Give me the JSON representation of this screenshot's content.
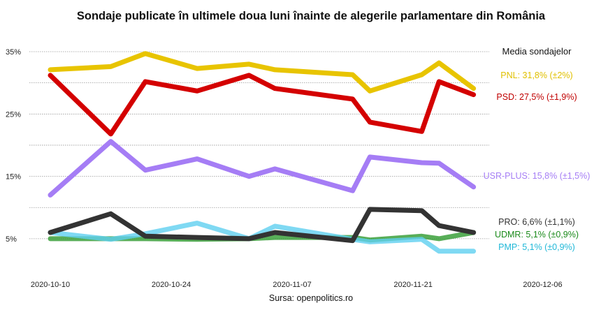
{
  "chart_data": {
    "type": "line",
    "title": "Sondaje publicate în ultimele doua luni înainte de alegerile parlamentare din România",
    "source": "Sursa: openpolitics.ro",
    "legend_title": "Media sondajelor",
    "xlabel": "",
    "ylabel": "",
    "x_ticks": [
      "2020-10-10",
      "2020-10-24",
      "2020-11-07",
      "2020-11-21",
      "2020-12-06"
    ],
    "y_ticks": [
      "5%",
      "15%",
      "25%",
      "35%"
    ],
    "xlim": [
      "2020-10-05",
      "2020-12-10"
    ],
    "ylim": [
      0,
      37
    ],
    "grid": "horizontal dotted every 5%",
    "legend_placement": "right",
    "x": [
      "2020-10-10",
      "2020-10-17",
      "2020-10-21",
      "2020-10-27",
      "2020-11-02",
      "2020-11-05",
      "2020-11-14",
      "2020-11-16",
      "2020-11-22",
      "2020-11-24",
      "2020-11-28"
    ],
    "series": [
      {
        "name": "PNL",
        "label": "PNL: 31,8% (±2%)",
        "color": "#e8c400",
        "values": [
          32.1,
          32.6,
          34.7,
          32.3,
          33.0,
          32.1,
          31.3,
          28.7,
          31.3,
          33.2,
          29.1
        ]
      },
      {
        "name": "PSD",
        "label": "PSD: 27,5% (±1,9%)",
        "color": "#d40000",
        "values": [
          31.2,
          21.8,
          30.2,
          28.7,
          31.2,
          29.1,
          27.4,
          23.7,
          22.2,
          30.2,
          28.1
        ]
      },
      {
        "name": "USR-PLUS",
        "label": "USR-PLUS: 15,8% (±1,5%)",
        "color": "#a57df5",
        "values": [
          12.0,
          20.6,
          16.0,
          17.8,
          15.0,
          16.2,
          12.7,
          18.1,
          17.2,
          17.1,
          13.3
        ]
      },
      {
        "name": "UDMR",
        "label": "UDMR: 5,1% (±0,9%)",
        "color": "#2e9a2e",
        "values": [
          5.0,
          5.0,
          5.0,
          4.9,
          5.0,
          5.2,
          5.2,
          4.8,
          5.4,
          5.0,
          6.0
        ]
      },
      {
        "name": "PMP",
        "label": "PMP: 5,1% (±0,9%)",
        "color": "#5fd0f0",
        "values": [
          6.0,
          4.9,
          5.8,
          7.5,
          5.0,
          7.0,
          4.9,
          4.5,
          4.9,
          3.0,
          3.0
        ]
      },
      {
        "name": "PRO",
        "label": "PRO: 6,6% (±1,1%)",
        "color": "#333333",
        "values": [
          6.0,
          9.0,
          5.4,
          5.2,
          5.0,
          6.0,
          4.7,
          9.7,
          9.5,
          7.1,
          6.0
        ]
      }
    ],
    "label_colors": {
      "PNL": "#e0c000",
      "PSD": "#c00000",
      "USR-PLUS": "#a57df5",
      "PRO": "#333333",
      "UDMR": "#1a8a1a",
      "PMP": "#20b8d8"
    }
  }
}
